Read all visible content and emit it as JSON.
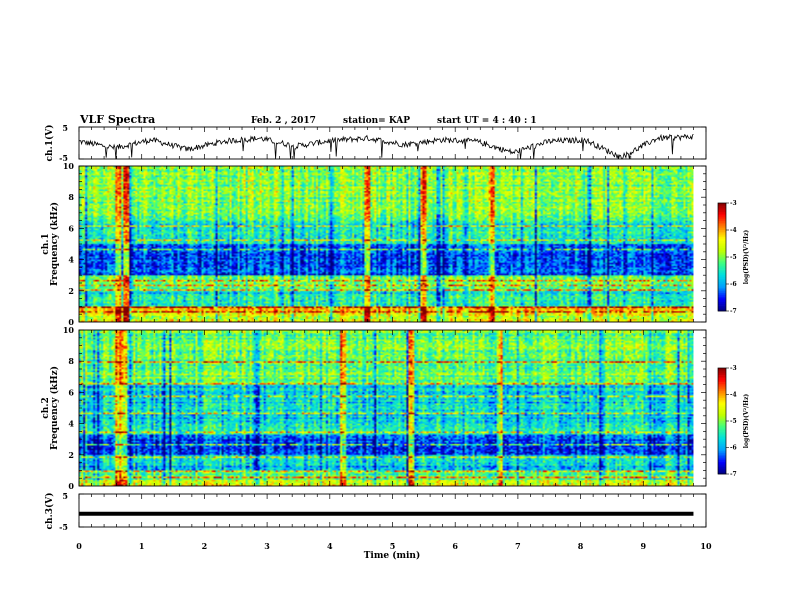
{
  "header": {
    "title": "VLF Spectra",
    "date": "Feb. 2 , 2017",
    "station": "station= KAP",
    "start": "start  UT =   4 : 40 : 1"
  },
  "colors": {
    "axis": "#000000",
    "waveform": "#000000",
    "spectrogram_colormap": [
      "#000080",
      "#0000ff",
      "#00a0ff",
      "#00e0e0",
      "#40ff80",
      "#c0ff00",
      "#ffff00",
      "#ff8000",
      "#ff0000",
      "#800000"
    ]
  },
  "chart_data": [
    {
      "type": "line",
      "panel": "channel-1-waveform",
      "ylabel": "ch.1(V)",
      "ylim": [
        -5,
        5
      ],
      "yticks": [
        "5",
        "-5"
      ],
      "xlim": [
        0,
        10
      ],
      "series": [
        {
          "x_range": [
            0,
            9.8
          ],
          "mean": 0.2,
          "amplitude": 2.5,
          "values_approx": [
            0.5,
            -1.5,
            1.0,
            -2.0,
            0.5,
            1.5,
            -1.0,
            0.8,
            1.5,
            -0.5,
            1.0,
            0.5,
            -3.0,
            0.5,
            1.0,
            -4.5,
            1.5,
            2.0
          ]
        }
      ]
    },
    {
      "type": "heatmap",
      "panel": "channel-1-spectrogram",
      "ylabel": "ch.1\nFrequency  (kHz)",
      "xlim": [
        0,
        10
      ],
      "ylim": [
        0,
        10
      ],
      "yticks": [
        "0",
        "2",
        "4",
        "6",
        "8",
        "10"
      ],
      "data_x_range": [
        0,
        9.8
      ],
      "colorbar": {
        "label": "log(PSD)(V²/Hz)",
        "range": [
          -7,
          -3
        ],
        "ticks": [
          "-3",
          "-4",
          "-5",
          "-6",
          "-7"
        ]
      },
      "band_level": [
        {
          "f": [
            0,
            0.5
          ],
          "level": -4.6
        },
        {
          "f": [
            0.5,
            1.0
          ],
          "level": -4.2
        },
        {
          "f": [
            1.0,
            2.0
          ],
          "level": -5.6
        },
        {
          "f": [
            2.0,
            3.0
          ],
          "level": -5.0
        },
        {
          "f": [
            3.0,
            5.0
          ],
          "level": -6.3
        },
        {
          "f": [
            5.0,
            6.5
          ],
          "level": -5.5
        },
        {
          "f": [
            6.5,
            10.0
          ],
          "level": -5.0
        }
      ],
      "line_features_kHz": [
        0.6,
        0.9,
        2.0,
        2.3,
        2.6,
        4.6,
        5.3,
        6.2
      ],
      "bursts_min": [
        0.6,
        0.75,
        4.6,
        5.5,
        6.6
      ]
    },
    {
      "type": "heatmap",
      "panel": "channel-2-spectrogram",
      "ylabel": "ch.2\nFrequency  (kHz)",
      "xlim": [
        0,
        10
      ],
      "ylim": [
        0,
        10
      ],
      "yticks": [
        "0",
        "2",
        "4",
        "6",
        "8",
        "10"
      ],
      "data_x_range": [
        0,
        9.8
      ],
      "colorbar": {
        "label": "log(PSD)(V²/Hz)",
        "range": [
          -7,
          -3
        ],
        "ticks": [
          "-3",
          "-4",
          "-5",
          "-6",
          "-7"
        ]
      },
      "band_level": [
        {
          "f": [
            0,
            0.4
          ],
          "level": -4.5
        },
        {
          "f": [
            0.4,
            1.0
          ],
          "level": -5.2
        },
        {
          "f": [
            1.0,
            2.0
          ],
          "level": -5.8
        },
        {
          "f": [
            2.0,
            3.3
          ],
          "level": -6.3
        },
        {
          "f": [
            3.3,
            4.0
          ],
          "level": -5.4
        },
        {
          "f": [
            4.0,
            6.5
          ],
          "level": -5.7
        },
        {
          "f": [
            6.5,
            10.0
          ],
          "level": -5.1
        }
      ],
      "line_features_kHz": [
        0.5,
        0.9,
        1.8,
        2.6,
        3.4,
        4.6,
        5.8,
        6.6,
        8.0
      ],
      "bursts_min": [
        0.6,
        0.7,
        4.2,
        5.3,
        6.7
      ]
    },
    {
      "type": "line",
      "panel": "channel-3-waveform",
      "ylabel": "ch.3(V)",
      "ylim": [
        -5,
        5
      ],
      "yticks": [
        "5",
        "-5"
      ],
      "xlim": [
        0,
        10
      ],
      "series": [
        {
          "x_range": [
            0,
            9.8
          ],
          "values": [
            -1.0,
            -1.0
          ]
        }
      ]
    }
  ],
  "xaxis": {
    "label": "Time  (min)",
    "ticks": [
      "0",
      "1",
      "2",
      "3",
      "4",
      "5",
      "6",
      "7",
      "8",
      "9",
      "10"
    ]
  }
}
